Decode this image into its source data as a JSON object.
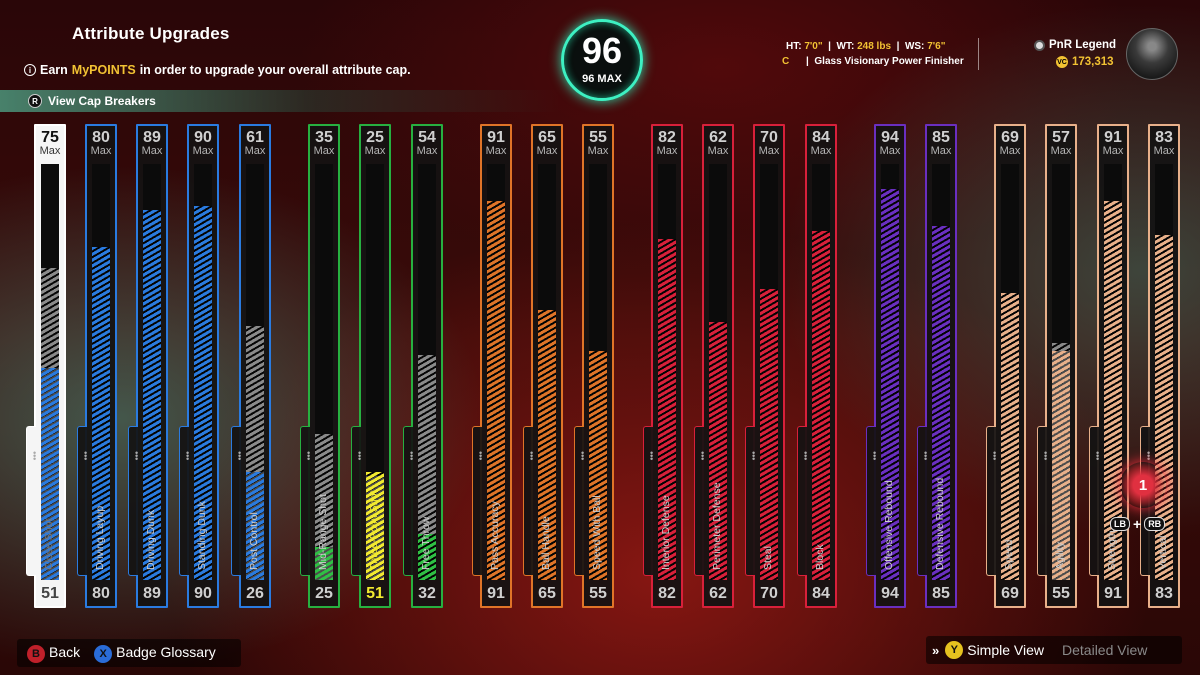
{
  "header": {
    "title": "Attribute Upgrades",
    "subtitle_prefix": "Earn",
    "subtitle_accent": "MyPOINTS",
    "subtitle_suffix": "in order to upgrade your overall attribute cap.",
    "info_icon": "i",
    "cap_breakers_button": "R",
    "cap_breakers_label": "View Cap Breakers"
  },
  "overall": {
    "value": "96",
    "max_label": "96 MAX",
    "accent": "#3df0c2"
  },
  "player": {
    "ht_label": "HT:",
    "ht_value": "7'0\"",
    "wt_label": "WT:",
    "wt_value": "248 lbs",
    "ws_label": "WS:",
    "ws_value": "7'6\"",
    "sep": "|",
    "position": "C",
    "build": "Glass Visionary Power Finisher",
    "name": "PnR Legend",
    "vc": "173,313"
  },
  "max_label": "Max",
  "attributes": [
    {
      "name": "Close Shot",
      "cap": "75",
      "current": "51",
      "group": "finishing",
      "selected": true
    },
    {
      "name": "Driving Layup",
      "cap": "80",
      "current": "80",
      "group": "finishing"
    },
    {
      "name": "Driving Dunk",
      "cap": "89",
      "current": "89",
      "group": "finishing"
    },
    {
      "name": "Standing Dunk",
      "cap": "90",
      "current": "90",
      "group": "finishing"
    },
    {
      "name": "Post Control",
      "cap": "61",
      "current": "26",
      "group": "finishing"
    },
    {
      "name": "Mid-Range Shot",
      "cap": "35",
      "current": "25",
      "group": "shooting"
    },
    {
      "name": "Three-Point Shot",
      "cap": "25",
      "current": "51",
      "group": "shooting",
      "highlight": true
    },
    {
      "name": "Free Throw",
      "cap": "54",
      "current": "32",
      "group": "shooting"
    },
    {
      "name": "Pass Accuracy",
      "cap": "91",
      "current": "91",
      "group": "playmaking"
    },
    {
      "name": "Ball Handle",
      "cap": "65",
      "current": "65",
      "group": "playmaking"
    },
    {
      "name": "Speed With Ball",
      "cap": "55",
      "current": "55",
      "group": "playmaking"
    },
    {
      "name": "Interior Defense",
      "cap": "82",
      "current": "82",
      "group": "defense"
    },
    {
      "name": "Perimeter Defense",
      "cap": "62",
      "current": "62",
      "group": "defense"
    },
    {
      "name": "Steal",
      "cap": "70",
      "current": "70",
      "group": "defense"
    },
    {
      "name": "Block",
      "cap": "84",
      "current": "84",
      "group": "defense"
    },
    {
      "name": "Offensive Rebound",
      "cap": "94",
      "current": "94",
      "group": "rebounding"
    },
    {
      "name": "Defensive Rebound",
      "cap": "85",
      "current": "85",
      "group": "rebounding"
    },
    {
      "name": "Speed",
      "cap": "69",
      "current": "69",
      "group": "physicals"
    },
    {
      "name": "Agility",
      "cap": "57",
      "current": "55",
      "group": "physicals"
    },
    {
      "name": "Strength",
      "cap": "91",
      "current": "91",
      "group": "physicals"
    },
    {
      "name": "Vertical",
      "cap": "83",
      "current": "83",
      "group": "physicals"
    }
  ],
  "group_colors": {
    "finishing": "#2a7be0",
    "shooting": "#27b040",
    "playmaking": "#e07428",
    "defense": "#d8203a",
    "rebounding": "#6a2fc0",
    "physicals": "#e8b08a",
    "selected": "#2a7be0",
    "highlight": "#f2ea30",
    "shooting_fill": "#2fc044",
    "cap_gray": "#8a8a8a"
  },
  "upgrade_badge": {
    "count": "1",
    "lb": "LB",
    "plus": "+",
    "rb": "RB"
  },
  "footer": {
    "back_key": "B",
    "back_label": "Back",
    "glossary_key": "X",
    "glossary_label": "Badge Glossary",
    "chevrons": "»",
    "view_key": "Y",
    "simple_view": "Simple View",
    "detailed_view": "Detailed View"
  }
}
